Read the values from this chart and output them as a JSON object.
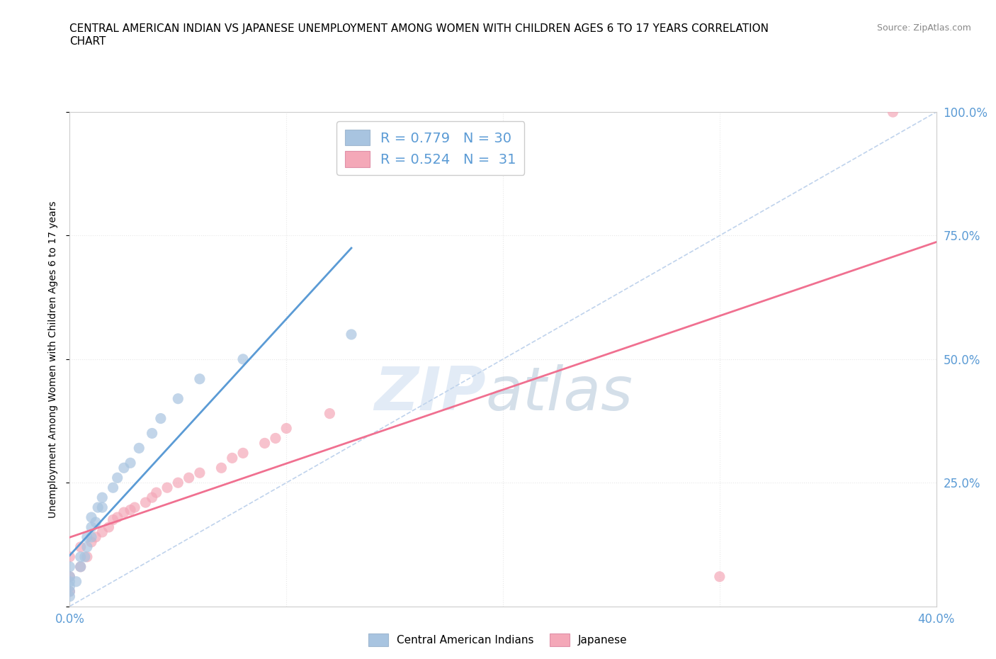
{
  "title_line1": "CENTRAL AMERICAN INDIAN VS JAPANESE UNEMPLOYMENT AMONG WOMEN WITH CHILDREN AGES 6 TO 17 YEARS CORRELATION",
  "title_line2": "CHART",
  "source": "Source: ZipAtlas.com",
  "ylabel": "Unemployment Among Women with Children Ages 6 to 17 years",
  "xlim": [
    0.0,
    0.4
  ],
  "ylim": [
    0.0,
    1.0
  ],
  "xticks": [
    0.0,
    0.1,
    0.2,
    0.3,
    0.4
  ],
  "xticklabels": [
    "0.0%",
    "",
    "",
    "",
    "40.0%"
  ],
  "yticks": [
    0.0,
    0.25,
    0.5,
    0.75,
    1.0
  ],
  "yticklabels": [
    "",
    "25.0%",
    "50.0%",
    "75.0%",
    "100.0%"
  ],
  "blue_color": "#a8c4e0",
  "pink_color": "#f4a8b8",
  "blue_line_color": "#5b9bd5",
  "pink_line_color": "#f07090",
  "diag_line_color": "#b0c8e8",
  "watermark_zip": "ZIP",
  "watermark_atlas": "atlas",
  "R_blue": "0.779",
  "N_blue": "30",
  "R_pink": "0.524",
  "N_pink": "31",
  "blue_scatter_x": [
    0.0,
    0.0,
    0.0,
    0.0,
    0.0,
    0.0,
    0.003,
    0.005,
    0.005,
    0.007,
    0.008,
    0.008,
    0.01,
    0.01,
    0.01,
    0.012,
    0.013,
    0.015,
    0.015,
    0.02,
    0.022,
    0.025,
    0.028,
    0.032,
    0.038,
    0.042,
    0.05,
    0.06,
    0.08,
    0.13
  ],
  "blue_scatter_y": [
    0.02,
    0.03,
    0.04,
    0.05,
    0.06,
    0.08,
    0.05,
    0.08,
    0.1,
    0.1,
    0.12,
    0.14,
    0.14,
    0.16,
    0.18,
    0.17,
    0.2,
    0.2,
    0.22,
    0.24,
    0.26,
    0.28,
    0.29,
    0.32,
    0.35,
    0.38,
    0.42,
    0.46,
    0.5,
    0.55
  ],
  "pink_scatter_x": [
    0.0,
    0.0,
    0.0,
    0.005,
    0.005,
    0.008,
    0.01,
    0.012,
    0.015,
    0.018,
    0.02,
    0.022,
    0.025,
    0.028,
    0.03,
    0.035,
    0.038,
    0.04,
    0.045,
    0.05,
    0.055,
    0.06,
    0.07,
    0.075,
    0.08,
    0.09,
    0.095,
    0.1,
    0.12,
    0.3,
    0.38
  ],
  "pink_scatter_y": [
    0.03,
    0.06,
    0.1,
    0.08,
    0.12,
    0.1,
    0.13,
    0.14,
    0.15,
    0.16,
    0.175,
    0.18,
    0.19,
    0.195,
    0.2,
    0.21,
    0.22,
    0.23,
    0.24,
    0.25,
    0.26,
    0.27,
    0.28,
    0.3,
    0.31,
    0.33,
    0.34,
    0.36,
    0.39,
    0.06,
    1.0
  ],
  "background_color": "#ffffff",
  "grid_color": "#e8e8e8"
}
